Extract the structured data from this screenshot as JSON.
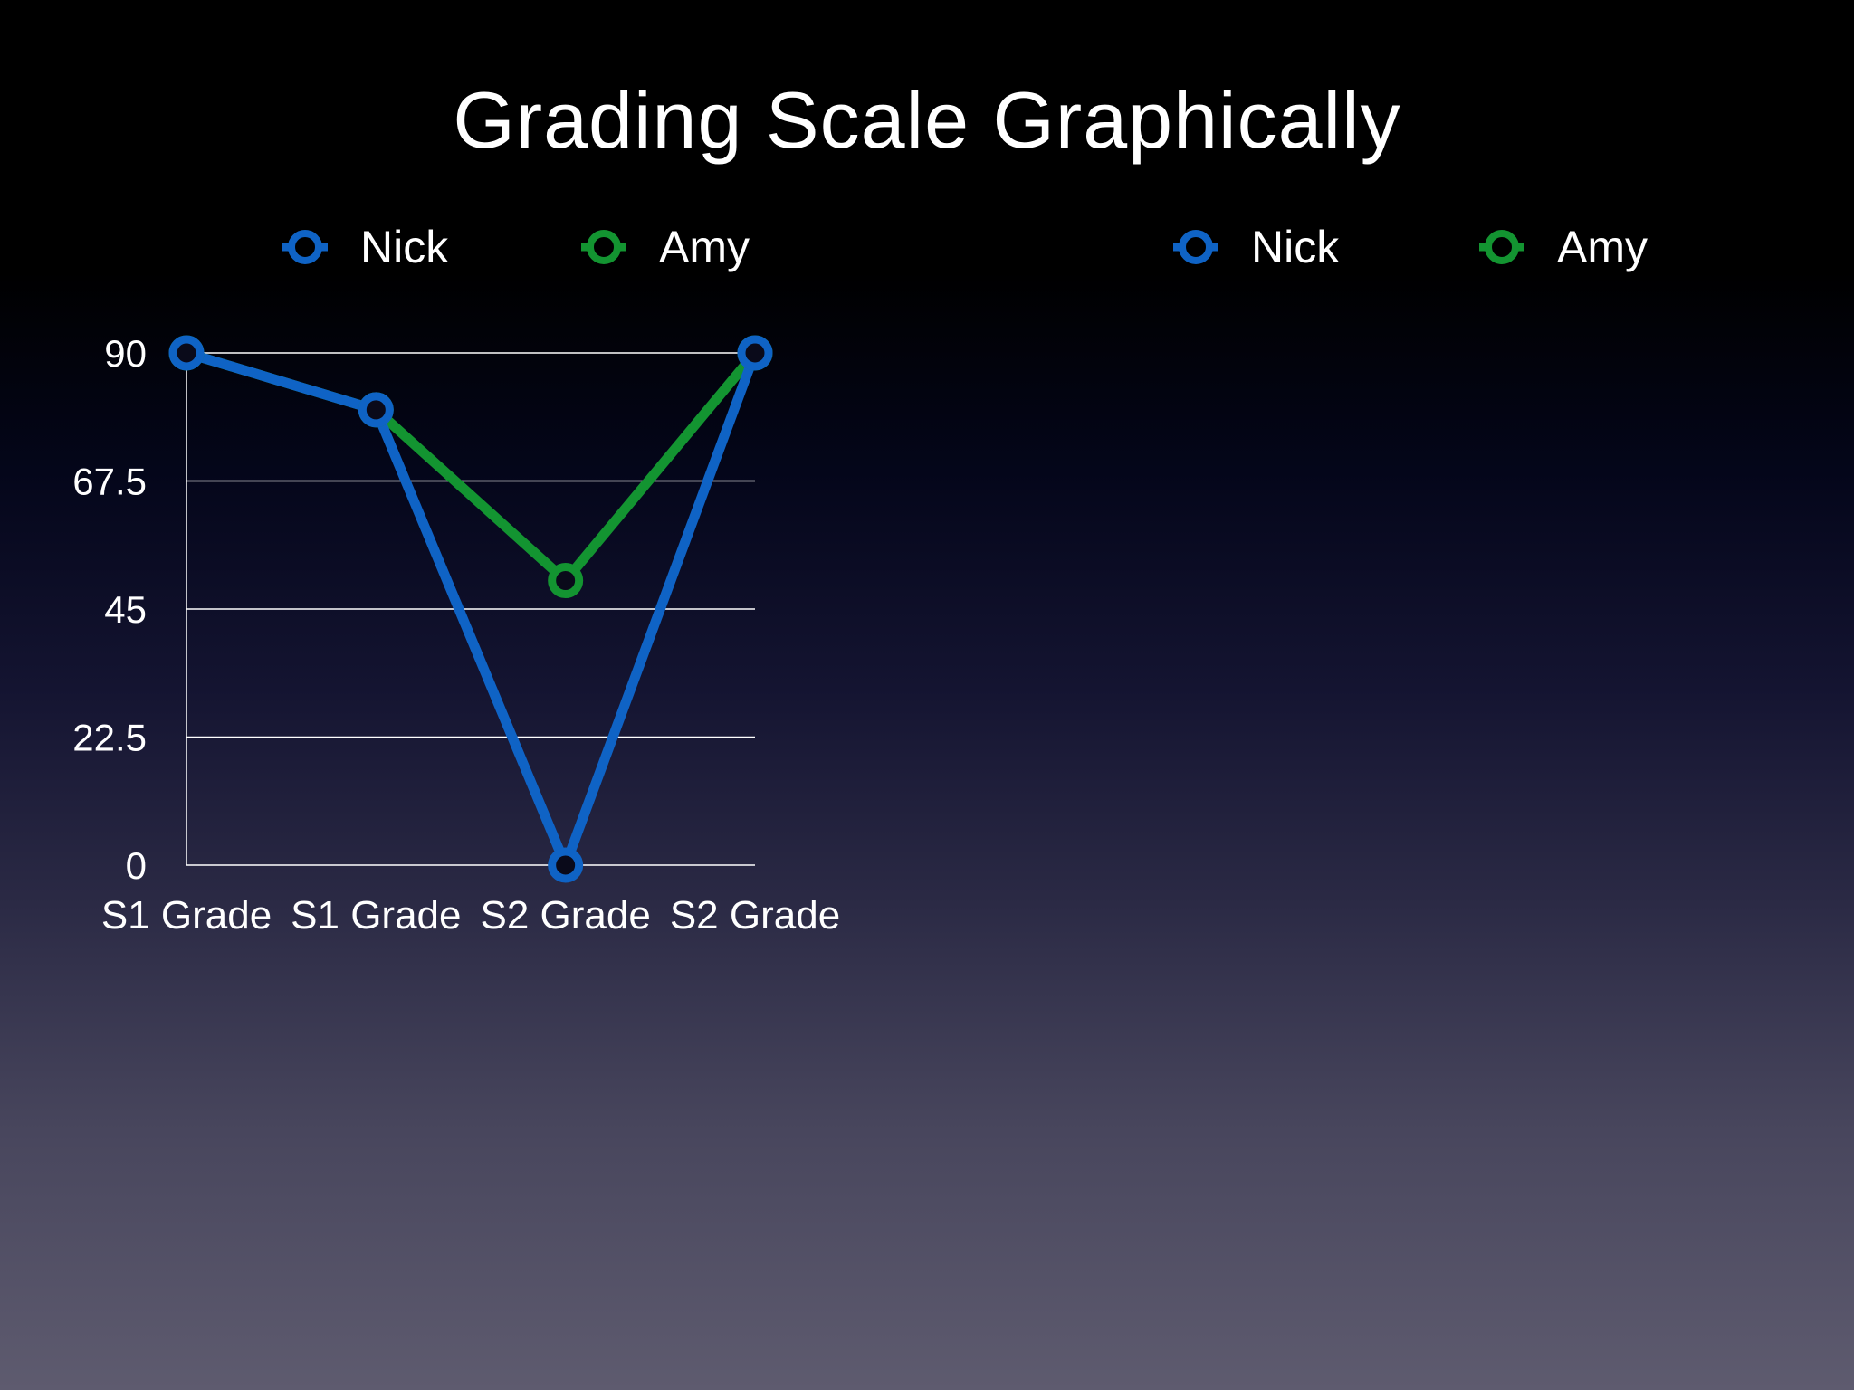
{
  "slide": {
    "title": "Grading Scale Graphically"
  },
  "legend_left": [
    {
      "name": "Nick",
      "color": "#0f63c5",
      "marker": "ring-marker"
    },
    {
      "name": "Amy",
      "color": "#139431",
      "marker": "ring-marker"
    }
  ],
  "legend_right": [
    {
      "name": "Nick",
      "color": "#0f63c5",
      "marker": "ring-marker"
    },
    {
      "name": "Amy",
      "color": "#139431",
      "marker": "ring-marker"
    }
  ],
  "chart_data": {
    "type": "line",
    "categories": [
      "S1 Grade",
      "S1 Grade",
      "S2 Grade",
      "S2 Grade"
    ],
    "series": [
      {
        "name": "Amy",
        "values": [
          90,
          80,
          50,
          90
        ],
        "color": "#139431"
      },
      {
        "name": "Nick",
        "values": [
          90,
          80,
          0,
          90
        ],
        "color": "#0f63c5"
      }
    ],
    "ylim": [
      0,
      90
    ],
    "yticks": [
      "0",
      "22.5",
      "45",
      "67.5",
      "90"
    ],
    "ytick_values": [
      0,
      22.5,
      45,
      67.5,
      90
    ],
    "grid": true,
    "legend_position": "top",
    "axis_color": "#ffffff"
  }
}
